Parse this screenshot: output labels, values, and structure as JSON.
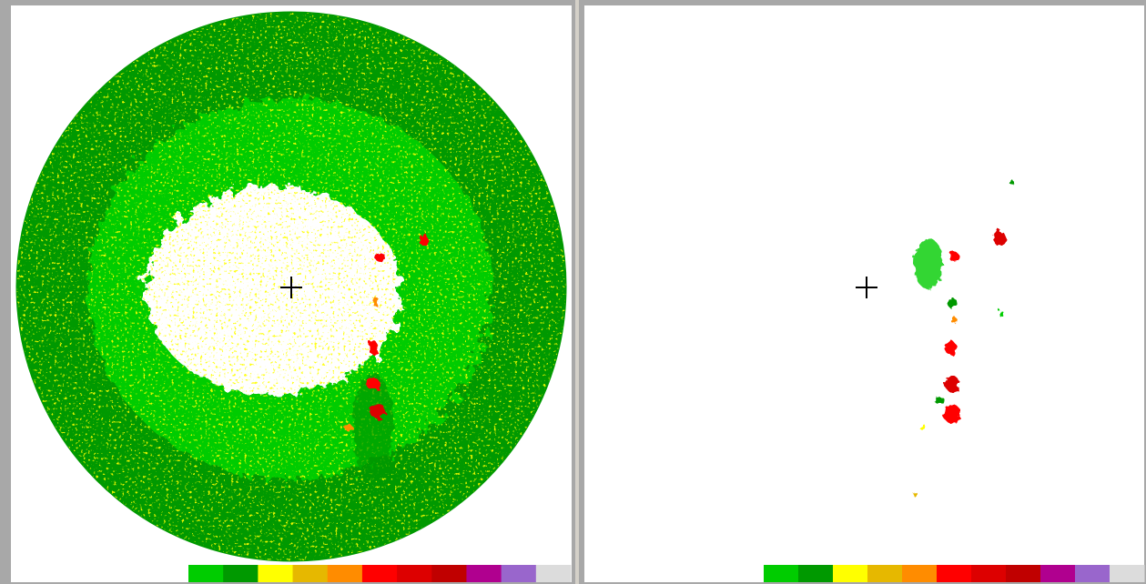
{
  "panels": [
    {
      "color_scale": [
        "#00cc00",
        "#009900",
        "#ffff00",
        "#e6b800",
        "#ff8c00",
        "#ff0000",
        "#dd0000",
        "#c00000",
        "#b0008f",
        "#9966cc",
        "#dcdcdc"
      ]
    },
    {
      "color_scale": [
        "#00cc00",
        "#009900",
        "#ffff00",
        "#e6b800",
        "#ff8c00",
        "#ff0000",
        "#dd0000",
        "#c00000",
        "#b0008f",
        "#9966cc",
        "#dcdcdc"
      ]
    }
  ]
}
